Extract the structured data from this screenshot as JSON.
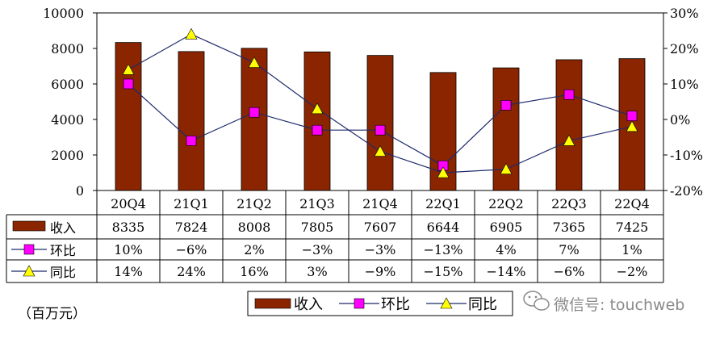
{
  "chart_data": {
    "type": "bar",
    "categories": [
      "20Q4",
      "21Q1",
      "21Q2",
      "21Q3",
      "21Q4",
      "22Q1",
      "22Q2",
      "22Q3",
      "22Q4"
    ],
    "series": [
      {
        "name": "收入",
        "type": "bar",
        "axis": "left",
        "color": "#8b2500",
        "values": [
          8335,
          7824,
          8008,
          7805,
          7607,
          6644,
          6905,
          7365,
          7425
        ]
      },
      {
        "name": "环比",
        "type": "line",
        "axis": "right",
        "color": "#ff00ff",
        "marker": "square",
        "values": [
          10,
          -6,
          2,
          -3,
          -3,
          -13,
          4,
          7,
          1
        ]
      },
      {
        "name": "同比",
        "type": "line",
        "axis": "right",
        "color": "#ffff00",
        "marker": "triangle",
        "values": [
          14,
          24,
          16,
          3,
          -9,
          -15,
          -14,
          -6,
          -2
        ]
      }
    ],
    "table": {
      "row_labels": [
        "收入",
        "环比",
        "同比"
      ],
      "rows": [
        [
          "8335",
          "7824",
          "8008",
          "7805",
          "7607",
          "6644",
          "6905",
          "7365",
          "7425"
        ],
        [
          "10%",
          "-6%",
          "2%",
          "-3%",
          "-3%",
          "-13%",
          "4%",
          "7%",
          "1%"
        ],
        [
          "14%",
          "24%",
          "16%",
          "3%",
          "-9%",
          "-15%",
          "-14%",
          "-6%",
          "-2%"
        ]
      ]
    },
    "left_axis": {
      "ylim": [
        0,
        10000
      ],
      "ticks": [
        "10000",
        "8000",
        "6000",
        "4000",
        "2000",
        "0"
      ]
    },
    "right_axis": {
      "ylim": [
        -20,
        30
      ],
      "ticks": [
        "30%",
        "20%",
        "10%",
        "0%",
        "-10%",
        "-20%"
      ]
    },
    "legend": {
      "position": "bottom",
      "items": [
        "收入",
        "环比",
        "同比"
      ]
    },
    "unit_label": "（百万元）",
    "grid": false
  },
  "watermark": {
    "text": "微信号: touchweb",
    "icon": "wechat-icon"
  }
}
